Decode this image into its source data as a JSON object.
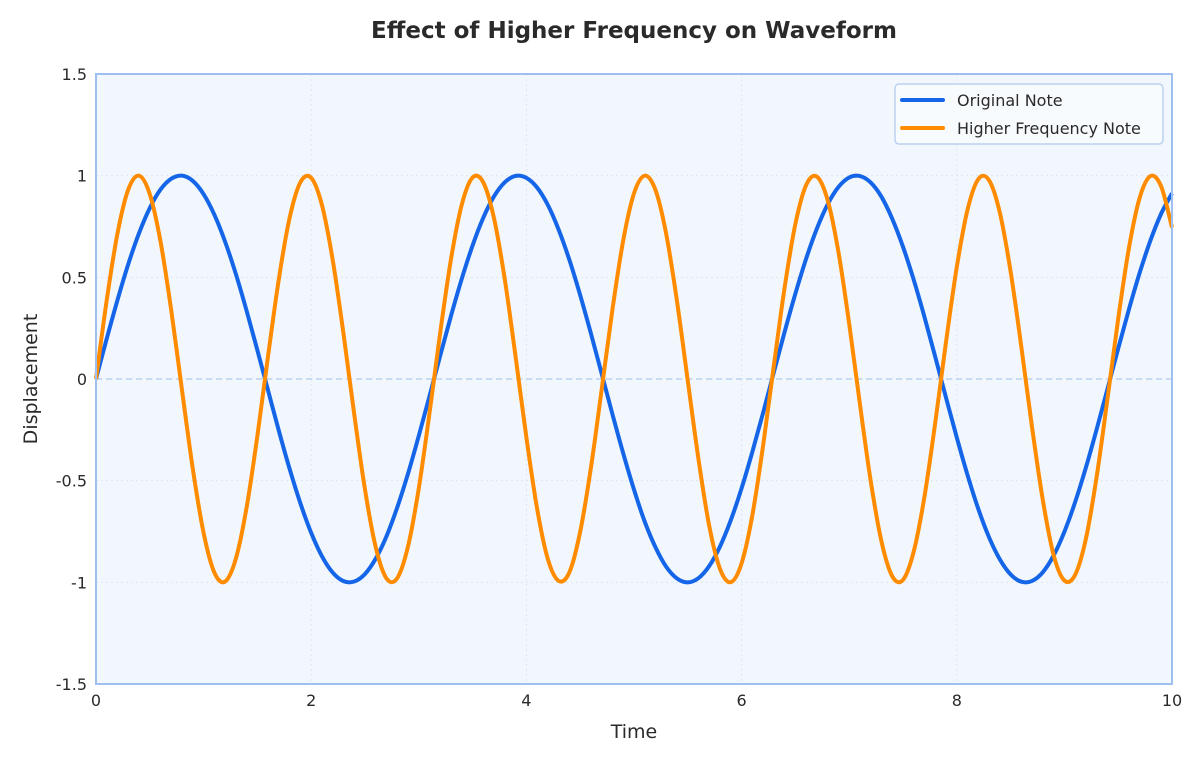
{
  "chart_data": {
    "type": "line",
    "title": "Effect of Higher Frequency on Waveform",
    "xlabel": "Time",
    "ylabel": "Displacement",
    "xlim": [
      0,
      10
    ],
    "ylim": [
      -1.5,
      1.5
    ],
    "xticks": [
      "0",
      "2",
      "4",
      "6",
      "8",
      "10"
    ],
    "xtick_values": [
      0,
      2,
      4,
      6,
      8,
      10
    ],
    "yticks": [
      "1.5",
      "1",
      "0.5",
      "0",
      "-0.5",
      "-1",
      "-1.5"
    ],
    "ytick_values": [
      1.5,
      1,
      0.5,
      0,
      -0.5,
      -1,
      -1.5
    ],
    "grid": true,
    "zero_line": true,
    "legend_position": "top-right",
    "x_start": 0,
    "x_step": 0.1,
    "series": [
      {
        "name": "Original Note",
        "color": "#1565e8",
        "values": [
          0,
          0.199,
          0.389,
          0.565,
          0.717,
          0.841,
          0.932,
          0.985,
          1.0,
          0.974,
          0.909,
          0.808,
          0.675,
          0.516,
          0.335,
          0.141,
          -0.058,
          -0.256,
          -0.443,
          -0.612,
          -0.757,
          -0.872,
          -0.952,
          -0.994,
          -0.996,
          -0.959,
          -0.883,
          -0.773,
          -0.631,
          -0.465,
          -0.279,
          -0.083,
          0.117,
          0.312,
          0.494,
          0.657,
          0.794,
          0.899,
          0.968,
          0.999,
          0.989,
          0.941,
          0.855,
          0.734,
          0.585,
          0.412,
          0.223,
          0.025,
          -0.174,
          -0.366,
          -0.544,
          -0.702,
          -0.828,
          -0.924,
          -0.981,
          -1.0,
          -0.979,
          -0.919,
          -0.823,
          -0.694,
          -0.537,
          -0.358,
          -0.166,
          0.034,
          0.232,
          0.42,
          0.592,
          0.74,
          0.859,
          0.944,
          0.991,
          0.998,
          0.966,
          0.896,
          0.788,
          0.65,
          0.487,
          0.304,
          0.108,
          -0.092,
          -0.288,
          -0.473,
          -0.639,
          -0.779,
          -0.887,
          -0.961,
          -0.997,
          -0.993,
          -0.95,
          -0.868,
          -0.751,
          -0.605,
          -0.435,
          -0.247,
          -0.05,
          0.15,
          0.343,
          0.523,
          0.682,
          0.814,
          0.913
        ]
      },
      {
        "name": "Higher Frequency Note",
        "color": "#ff8c00",
        "values": [
          0,
          0.389,
          0.717,
          0.932,
          1.0,
          0.909,
          0.675,
          0.335,
          -0.058,
          -0.443,
          -0.757,
          -0.952,
          -0.996,
          -0.883,
          -0.631,
          -0.279,
          0.117,
          0.494,
          0.794,
          0.968,
          0.989,
          0.855,
          0.585,
          0.223,
          -0.174,
          -0.544,
          -0.828,
          -0.981,
          -0.979,
          -0.823,
          -0.537,
          -0.166,
          0.232,
          0.592,
          0.859,
          0.991,
          0.966,
          0.788,
          0.487,
          0.108,
          -0.288,
          -0.639,
          -0.887,
          -0.993,
          -0.95,
          -0.751,
          -0.435,
          -0.05,
          0.343,
          0.682,
          0.913,
          1.0,
          0.929,
          0.711,
          0.381,
          -0.009,
          -0.397,
          -0.725,
          -0.935,
          -0.999,
          -0.906,
          -0.67,
          -0.327,
          0.067,
          0.45,
          0.763,
          0.954,
          0.995,
          0.879,
          0.625,
          0.271,
          -0.125,
          -0.502,
          -0.799,
          -0.97,
          -0.988,
          -0.848,
          -0.577,
          -0.214,
          0.183,
          0.551,
          0.833,
          0.983,
          0.977,
          0.818,
          0.529,
          0.157,
          -0.24,
          -0.597,
          -0.866,
          -0.991,
          -0.963,
          -0.785,
          -0.48,
          -0.099,
          0.296,
          0.645,
          0.892,
          0.998,
          0.946,
          0.745
        ]
      }
    ]
  }
}
